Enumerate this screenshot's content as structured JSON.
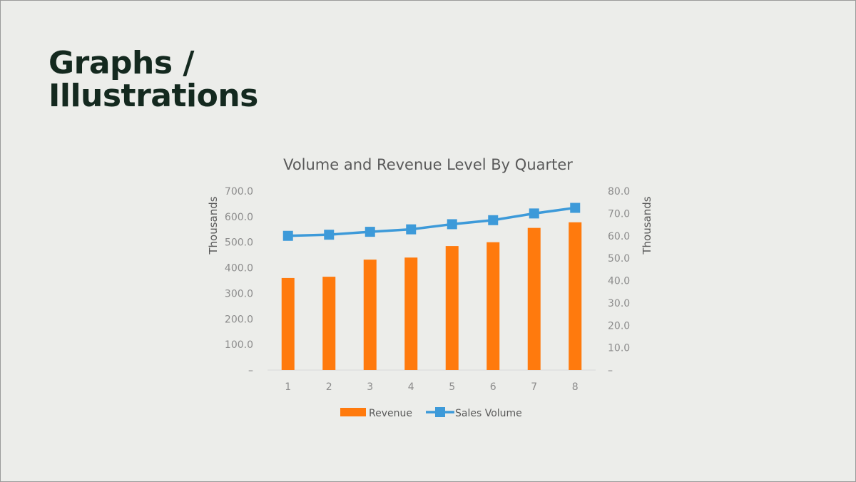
{
  "slide": {
    "title_line1": "Graphs /",
    "title_line2": "Illustrations"
  },
  "chart_data": {
    "type": "bar",
    "title": "Volume and Revenue Level By Quarter",
    "categories": [
      "1",
      "2",
      "3",
      "4",
      "5",
      "6",
      "7",
      "8"
    ],
    "series": [
      {
        "name": "Revenue",
        "kind": "bar",
        "axis": "left",
        "color": "#ff7a0d",
        "values": [
          360,
          365,
          432,
          440,
          485,
          500,
          556,
          578
        ]
      },
      {
        "name": "Sales Volume",
        "kind": "line",
        "marker": "square",
        "axis": "right",
        "color": "#3d9ad9",
        "values": [
          60.0,
          60.5,
          61.8,
          62.9,
          65.2,
          67.0,
          70.0,
          72.5
        ]
      }
    ],
    "y_left": {
      "label": "Thousands",
      "ylim": [
        0,
        700
      ],
      "ticks": [
        0,
        100,
        200,
        300,
        400,
        500,
        600,
        700
      ],
      "tick_labels": [
        "–",
        "100.0",
        "200.0",
        "300.0",
        "400.0",
        "500.0",
        "600.0",
        "700.0"
      ]
    },
    "y_right": {
      "label": "Thousands",
      "ylim": [
        0,
        80
      ],
      "ticks": [
        0,
        10,
        20,
        30,
        40,
        50,
        60,
        70,
        80
      ],
      "tick_labels": [
        "–",
        "10.0",
        "20.0",
        "30.0",
        "40.0",
        "50.0",
        "60.0",
        "70.0",
        "80.0"
      ]
    },
    "grid": false,
    "legend": "bottom"
  }
}
